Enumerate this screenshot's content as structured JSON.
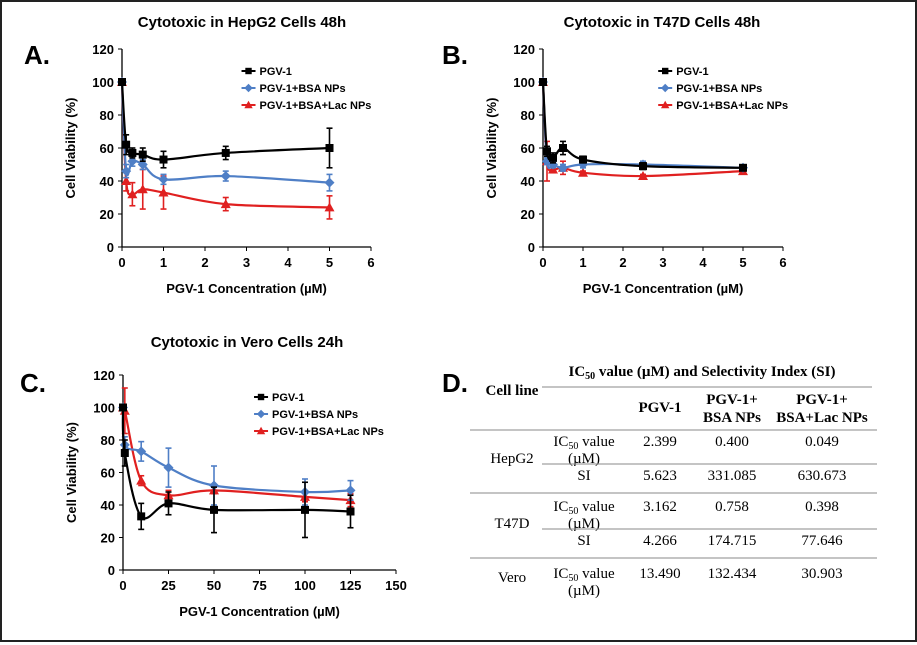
{
  "chart_data": [
    {
      "panel": "A.",
      "type": "line",
      "title": "Cytotoxic in HepG2 Cells 48h",
      "xlabel": "PGV-1 Concentration (µM)",
      "ylabel": "Cell Viability (%)",
      "xlim": [
        0,
        6
      ],
      "xticks": [
        0,
        1,
        2,
        3,
        4,
        5,
        6
      ],
      "ylim": [
        0,
        120
      ],
      "yticks": [
        0,
        20,
        40,
        60,
        80,
        100,
        120
      ],
      "legend_position": "top-right",
      "series": [
        {
          "name": "PGV-1",
          "color": "#000000",
          "marker": "square",
          "x": [
            0,
            0.1,
            0.25,
            0.5,
            1,
            2.5,
            5
          ],
          "y": [
            100,
            62,
            57,
            56,
            53,
            57,
            60
          ],
          "err": [
            0,
            6,
            3,
            4,
            5,
            4,
            12
          ]
        },
        {
          "name": "PGV-1+BSA NPs",
          "color": "#4f7fc6",
          "marker": "diamond",
          "x": [
            0,
            0.1,
            0.25,
            0.5,
            1,
            2.5,
            5
          ],
          "y": [
            100,
            46,
            52,
            50,
            41,
            43,
            39
          ],
          "err": [
            0,
            4,
            3,
            3,
            3,
            3,
            5
          ]
        },
        {
          "name": "PGV-1+BSA+Lac NPs",
          "color": "#e02020",
          "marker": "triangle",
          "x": [
            0,
            0.1,
            0.25,
            0.5,
            1,
            2.5,
            5
          ],
          "y": [
            100,
            40,
            32,
            35,
            33,
            26,
            24
          ],
          "err": [
            0,
            6,
            7,
            12,
            10,
            4,
            7
          ]
        }
      ]
    },
    {
      "panel": "B.",
      "type": "line",
      "title": "Cytotoxic in T47D Cells 48h",
      "xlabel": "PGV-1 Concentration (µM)",
      "ylabel": "Cell Viability (%)",
      "xlim": [
        0,
        6
      ],
      "xticks": [
        0,
        1,
        2,
        3,
        4,
        5,
        6
      ],
      "ylim": [
        0,
        120
      ],
      "yticks": [
        0,
        20,
        40,
        60,
        80,
        100,
        120
      ],
      "legend_position": "top-right",
      "series": [
        {
          "name": "PGV-1",
          "color": "#000000",
          "marker": "square",
          "x": [
            0,
            0.1,
            0.25,
            0.5,
            1,
            2.5,
            5
          ],
          "y": [
            100,
            58,
            54,
            60,
            53,
            49,
            48
          ],
          "err": [
            0,
            3,
            3,
            4,
            2,
            2,
            1
          ]
        },
        {
          "name": "PGV-1+BSA NPs",
          "color": "#4f7fc6",
          "marker": "diamond",
          "x": [
            0,
            0.1,
            0.25,
            0.5,
            1,
            2.5,
            5
          ],
          "y": [
            100,
            52,
            50,
            48,
            50,
            50,
            48
          ],
          "err": [
            0,
            2,
            2,
            2,
            2,
            2,
            1
          ]
        },
        {
          "name": "PGV-1+BSA+Lac NPs",
          "color": "#e02020",
          "marker": "triangle",
          "x": [
            0,
            0.1,
            0.25,
            0.5,
            1,
            2.5,
            5
          ],
          "y": [
            100,
            52,
            47,
            48,
            45,
            43,
            46
          ],
          "err": [
            0,
            12,
            2,
            4,
            1,
            1,
            1
          ]
        }
      ]
    },
    {
      "panel": "C.",
      "type": "line",
      "title": "Cytotoxic in Vero Cells 24h",
      "xlabel": "PGV-1 Concentration (µM)",
      "ylabel": "Cell Viability (%)",
      "xlim": [
        0,
        150
      ],
      "xticks": [
        0,
        25,
        50,
        75,
        100,
        125,
        150
      ],
      "ylim": [
        0,
        120
      ],
      "yticks": [
        0,
        20,
        40,
        60,
        80,
        100,
        120
      ],
      "legend_position": "top-right",
      "series": [
        {
          "name": "PGV-1",
          "color": "#000000",
          "marker": "square",
          "x": [
            0,
            1,
            10,
            25,
            50,
            100,
            125
          ],
          "y": [
            100,
            72,
            33,
            41,
            37,
            37,
            36
          ],
          "err": [
            0,
            8,
            8,
            7,
            14,
            17,
            10
          ]
        },
        {
          "name": "PGV-1+BSA NPs",
          "color": "#4f7fc6",
          "marker": "diamond",
          "x": [
            0,
            1,
            10,
            25,
            50,
            100,
            125
          ],
          "y": [
            100,
            77,
            73,
            63,
            52,
            48,
            49
          ],
          "err": [
            0,
            5,
            6,
            12,
            12,
            8,
            6
          ]
        },
        {
          "name": "PGV-1+BSA+Lac NPs",
          "color": "#e02020",
          "marker": "triangle",
          "x": [
            0,
            1,
            10,
            25,
            50,
            100,
            125
          ],
          "y": [
            100,
            98,
            55,
            46,
            49,
            45,
            43
          ],
          "err": [
            0,
            14,
            3,
            3,
            2,
            3,
            4
          ]
        }
      ]
    }
  ],
  "table": {
    "panel": "D.",
    "title_prefix": "IC",
    "title_sub": "50",
    "title_suffix": " value (µM) and Selectivity Index (SI)",
    "header": {
      "cell_line": "Cell line",
      "col1": "PGV-1",
      "col2_line1": "PGV-1+",
      "col2_line2": "BSA NPs",
      "col3_line1": "PGV-1+",
      "col3_line2": "BSA+Lac NPs"
    },
    "ic_label_prefix": "IC",
    "ic_label_sub": "50",
    "ic_label_suffix": " value",
    "ic_label_unit": "(µM)",
    "si_label": "SI",
    "rows": [
      {
        "cell_line": "HepG2",
        "ic50": [
          "2.399",
          "0.400",
          "0.049"
        ],
        "si": [
          "5.623",
          "331.085",
          "630.673"
        ]
      },
      {
        "cell_line": "T47D",
        "ic50": [
          "3.162",
          "0.758",
          "0.398"
        ],
        "si": [
          "4.266",
          "174.715",
          "77.646"
        ]
      },
      {
        "cell_line": "Vero",
        "ic50": [
          "13.490",
          "132.434",
          "30.903"
        ]
      }
    ]
  }
}
